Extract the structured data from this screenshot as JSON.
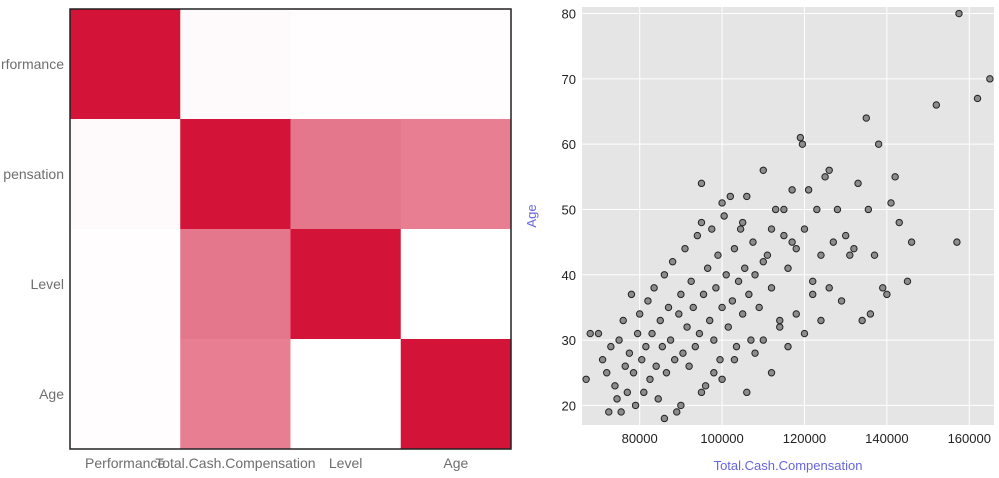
{
  "chart_data": [
    {
      "type": "heatmap",
      "title": "",
      "row_labels": [
        "Performance",
        "Total.Cash.Compensation",
        "Level",
        "Age"
      ],
      "row_labels_shown": [
        "rformance",
        "pensation",
        "Level",
        "Age"
      ],
      "column_labels": [
        "Performance",
        "Total.Cash.Compensation",
        "Level",
        "Age"
      ],
      "matrix": [
        [
          1.0,
          0.02,
          0.01,
          0.01
        ],
        [
          0.02,
          1.0,
          0.58,
          0.55
        ],
        [
          0.01,
          0.58,
          1.0,
          0.0
        ],
        [
          0.01,
          0.55,
          0.0,
          1.0
        ]
      ],
      "color_low": "#ffffff",
      "color_high": "#d31438"
    },
    {
      "type": "scatter",
      "title": "",
      "xlabel": "Total.Cash.Compensation",
      "ylabel": "Age",
      "xlim": [
        66000,
        166000
      ],
      "ylim": [
        17,
        81
      ],
      "x_ticks": [
        80000,
        100000,
        120000,
        140000,
        160000
      ],
      "y_ticks": [
        20,
        30,
        40,
        50,
        60,
        70,
        80
      ],
      "grid": true,
      "background": "#e5e5e5",
      "axis_label_color": "#6666dd",
      "point_fill": "#8c8c8c",
      "point_stroke": "#222222",
      "points": [
        [
          67000,
          24
        ],
        [
          68000,
          31
        ],
        [
          70000,
          31
        ],
        [
          71000,
          27
        ],
        [
          72000,
          25
        ],
        [
          72500,
          19
        ],
        [
          73000,
          29
        ],
        [
          74000,
          23
        ],
        [
          74500,
          21
        ],
        [
          75000,
          30
        ],
        [
          75500,
          19
        ],
        [
          76000,
          33
        ],
        [
          76500,
          26
        ],
        [
          77000,
          22
        ],
        [
          77500,
          28
        ],
        [
          78000,
          37
        ],
        [
          78500,
          25
        ],
        [
          79000,
          20
        ],
        [
          79500,
          31
        ],
        [
          80000,
          34
        ],
        [
          80500,
          27
        ],
        [
          81000,
          22
        ],
        [
          81500,
          29
        ],
        [
          82000,
          36
        ],
        [
          82500,
          24
        ],
        [
          83000,
          31
        ],
        [
          83500,
          38
        ],
        [
          84000,
          26
        ],
        [
          84500,
          21
        ],
        [
          85000,
          33
        ],
        [
          85500,
          29
        ],
        [
          86000,
          40
        ],
        [
          86500,
          25
        ],
        [
          87000,
          35
        ],
        [
          87500,
          30
        ],
        [
          88000,
          42
        ],
        [
          88500,
          27
        ],
        [
          89000,
          19
        ],
        [
          89500,
          34
        ],
        [
          90000,
          37
        ],
        [
          90500,
          28
        ],
        [
          91000,
          44
        ],
        [
          91500,
          32
        ],
        [
          92000,
          26
        ],
        [
          92500,
          39
        ],
        [
          93000,
          35
        ],
        [
          93500,
          29
        ],
        [
          94000,
          46
        ],
        [
          94500,
          31
        ],
        [
          95000,
          54
        ],
        [
          95500,
          37
        ],
        [
          96000,
          23
        ],
        [
          96500,
          41
        ],
        [
          97000,
          33
        ],
        [
          97500,
          47
        ],
        [
          98000,
          30
        ],
        [
          98500,
          38
        ],
        [
          99000,
          43
        ],
        [
          99500,
          27
        ],
        [
          100000,
          35
        ],
        [
          100500,
          49
        ],
        [
          101000,
          40
        ],
        [
          101500,
          32
        ],
        [
          102000,
          52
        ],
        [
          102500,
          36
        ],
        [
          103000,
          44
        ],
        [
          103500,
          29
        ],
        [
          104000,
          39
        ],
        [
          104500,
          47
        ],
        [
          105000,
          34
        ],
        [
          105500,
          41
        ],
        [
          106000,
          52
        ],
        [
          106500,
          37
        ],
        [
          107000,
          30
        ],
        [
          107500,
          45
        ],
        [
          108000,
          40
        ],
        [
          109000,
          35
        ],
        [
          110000,
          56
        ],
        [
          111000,
          43
        ],
        [
          112000,
          38
        ],
        [
          113000,
          50
        ],
        [
          114000,
          33
        ],
        [
          115000,
          46
        ],
        [
          116000,
          41
        ],
        [
          117000,
          53
        ],
        [
          118000,
          44
        ],
        [
          119000,
          61
        ],
        [
          119500,
          60
        ],
        [
          120000,
          47
        ],
        [
          121000,
          53
        ],
        [
          122000,
          39
        ],
        [
          123000,
          50
        ],
        [
          124000,
          43
        ],
        [
          125000,
          55
        ],
        [
          126000,
          56
        ],
        [
          127000,
          45
        ],
        [
          128000,
          50
        ],
        [
          129000,
          36
        ],
        [
          130000,
          46
        ],
        [
          131000,
          43
        ],
        [
          132000,
          44
        ],
        [
          133000,
          54
        ],
        [
          134000,
          33
        ],
        [
          135000,
          64
        ],
        [
          135500,
          50
        ],
        [
          136000,
          34
        ],
        [
          137000,
          43
        ],
        [
          138000,
          60
        ],
        [
          139000,
          38
        ],
        [
          140000,
          37
        ],
        [
          141000,
          51
        ],
        [
          142000,
          55
        ],
        [
          143000,
          48
        ],
        [
          145000,
          39
        ],
        [
          146000,
          45
        ],
        [
          152000,
          66
        ],
        [
          157000,
          45
        ],
        [
          157500,
          80
        ],
        [
          162000,
          67
        ],
        [
          165000,
          70
        ],
        [
          86000,
          18
        ],
        [
          90000,
          20
        ],
        [
          95000,
          22
        ],
        [
          98000,
          25
        ],
        [
          100000,
          24
        ],
        [
          103000,
          27
        ],
        [
          106000,
          22
        ],
        [
          108000,
          28
        ],
        [
          110000,
          30
        ],
        [
          112000,
          25
        ],
        [
          114000,
          32
        ],
        [
          116000,
          29
        ],
        [
          118000,
          34
        ],
        [
          120000,
          31
        ],
        [
          122000,
          37
        ],
        [
          124000,
          33
        ],
        [
          126000,
          38
        ],
        [
          112000,
          47
        ],
        [
          115000,
          50
        ],
        [
          117000,
          45
        ],
        [
          110000,
          42
        ],
        [
          105000,
          48
        ],
        [
          100000,
          51
        ],
        [
          95000,
          48
        ]
      ]
    }
  ]
}
